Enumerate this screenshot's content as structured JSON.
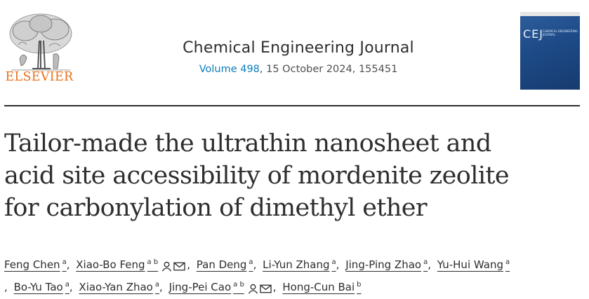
{
  "publisher": {
    "name": "ELSEVIER"
  },
  "journal": {
    "title": "Chemical Engineering Journal",
    "volume_link": "Volume 498",
    "citation": ", 15 October 2024, 155451",
    "cover": {
      "abbrev": "CEJ",
      "subtitle": "CHEMICAL ENGINEERING JOURNAL"
    }
  },
  "article": {
    "title_lines": [
      "Tailor-made the ultrathin nanosheet and",
      "acid site accessibility of mordenite zeolite",
      "for carbonylation of dimethyl ether"
    ]
  },
  "authors": [
    {
      "name": "Feng Chen",
      "aff": "a"
    },
    {
      "name": "Xiao-Bo Feng",
      "aff": "a b"
    },
    {
      "name": "Pan Deng",
      "aff": "a"
    },
    {
      "name": "Li-Yun Zhang",
      "aff": "a"
    },
    {
      "name": "Jing-Ping Zhao",
      "aff": "a"
    },
    {
      "name": "Yu-Hui Wang",
      "aff": "a"
    },
    {
      "name": "Bo-Yu Tao",
      "aff": "a"
    },
    {
      "name": "Xiao-Yan Zhao",
      "aff": "a"
    },
    {
      "name": "Jing-Pei Cao",
      "aff": "a b"
    },
    {
      "name": "Hong-Cun Bai",
      "aff": "b"
    }
  ],
  "separator": ",",
  "icons": [
    "person-icon",
    "envelope-icon"
  ],
  "colors": {
    "publisher_orange": "#e9711c",
    "link_blue": "#0c7dbb",
    "cover_blue": "#1d4a86"
  }
}
